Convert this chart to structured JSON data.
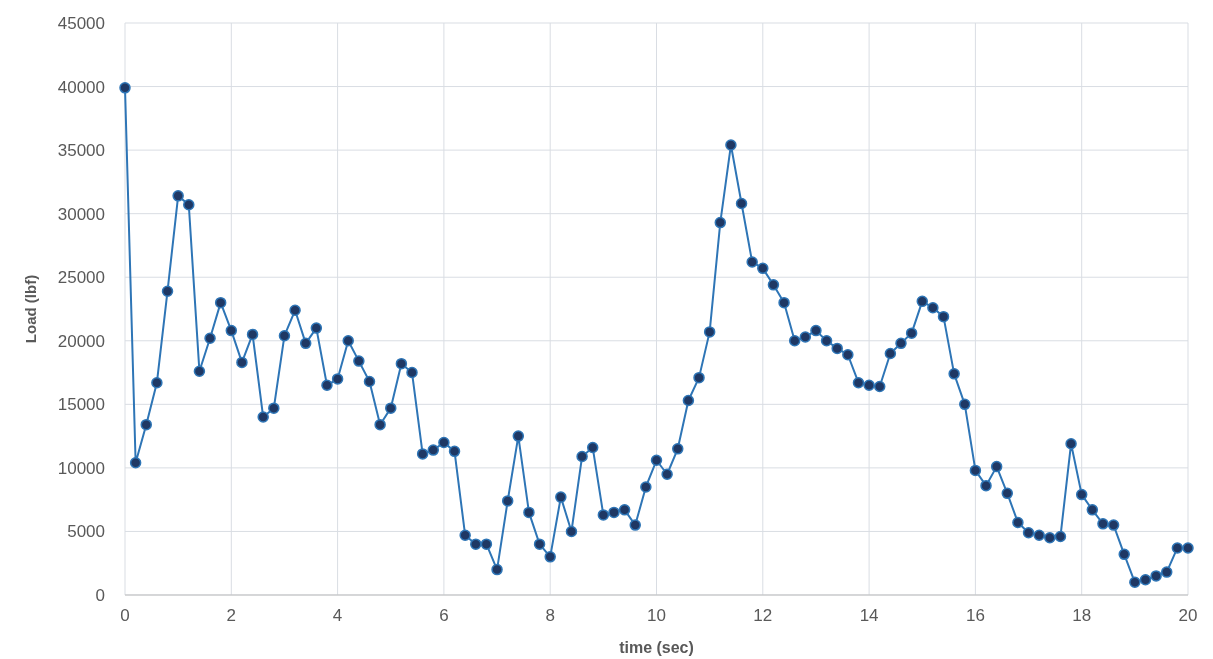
{
  "chart_data": {
    "type": "line",
    "xlabel": "time (sec)",
    "ylabel": "Load (lbf)",
    "x": [
      0,
      0.2,
      0.4,
      0.6,
      0.8,
      1,
      1.2,
      1.4,
      1.6,
      1.8,
      2,
      2.2,
      2.4,
      2.6,
      2.8,
      3,
      3.2,
      3.4,
      3.6,
      3.8,
      4,
      4.2,
      4.4,
      4.6,
      4.8,
      5,
      5.2,
      5.4,
      5.6,
      5.8,
      6,
      6.2,
      6.4,
      6.6,
      6.8,
      7,
      7.2,
      7.4,
      7.6,
      7.8,
      8,
      8.2,
      8.4,
      8.6,
      8.8,
      9,
      9.2,
      9.4,
      9.6,
      9.8,
      10,
      10.2,
      10.4,
      10.6,
      10.8,
      11,
      11.2,
      11.4,
      11.6,
      11.8,
      12,
      12.2,
      12.4,
      12.6,
      12.8,
      13,
      13.2,
      13.4,
      13.6,
      13.8,
      14,
      14.2,
      14.4,
      14.6,
      14.8,
      15,
      15.2,
      15.4,
      15.6,
      15.8,
      16,
      16.2,
      16.4,
      16.6,
      16.8,
      17,
      17.2,
      17.4,
      17.6,
      17.8,
      18,
      18.2,
      18.4,
      18.6,
      18.8,
      19,
      19.2,
      19.4,
      19.6,
      19.8,
      20
    ],
    "series": [
      {
        "color": "#2e75b6",
        "values": [
          39900,
          10400,
          13400,
          16700,
          23900,
          31400,
          30700,
          17600,
          20200,
          23000,
          20800,
          18300,
          20500,
          14000,
          14700,
          20400,
          22400,
          19800,
          21000,
          16500,
          17000,
          20000,
          18400,
          16800,
          13400,
          14700,
          18200,
          17500,
          11100,
          11400,
          12000,
          11300,
          4700,
          4000,
          4000,
          2000,
          7400,
          12500,
          6500,
          4000,
          3000,
          7700,
          5000,
          10900,
          11600,
          6300,
          6500,
          6700,
          5500,
          8500,
          10600,
          9500,
          11500,
          15300,
          17100,
          20700,
          29300,
          35400,
          30800,
          26200,
          25700,
          24400,
          23000,
          20000,
          20300,
          20800,
          20000,
          19400,
          18900,
          16700,
          16500,
          16400,
          19000,
          19800,
          20600,
          23100,
          22600,
          21900,
          17400,
          15000,
          9800,
          8600,
          10100,
          8000,
          5700,
          4900,
          4700,
          4500,
          4600,
          11900,
          7900,
          6700,
          5600,
          5500,
          3200,
          1000,
          1200,
          1500,
          1800,
          3700,
          3700
        ]
      }
    ],
    "xlim": [
      0,
      20
    ],
    "xticks": [
      0,
      2,
      4,
      6,
      8,
      10,
      12,
      14,
      16,
      18,
      20
    ],
    "ylim": [
      0,
      45000
    ],
    "yticks": [
      0,
      5000,
      10000,
      15000,
      20000,
      25000,
      30000,
      35000,
      40000,
      45000
    ],
    "grid": true,
    "marker": "circle",
    "line_style": "solid"
  }
}
